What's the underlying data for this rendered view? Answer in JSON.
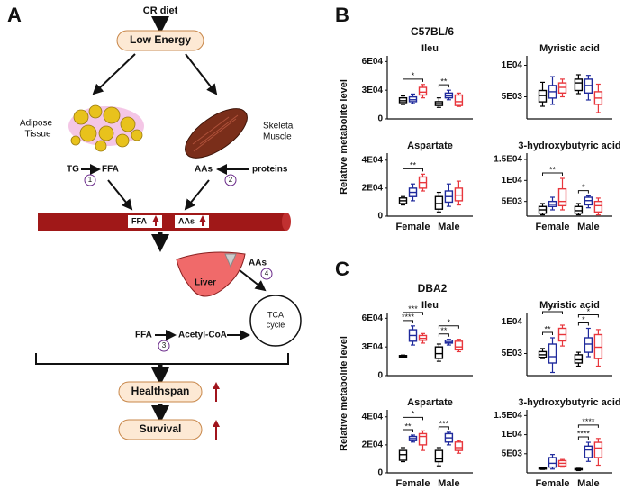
{
  "diagram": {
    "panel_label": "A",
    "diet": "CR diet",
    "low_energy": "Low Energy",
    "adipose": [
      "Adipose",
      "Tissue"
    ],
    "muscle": [
      "Skeletal",
      "Muscle"
    ],
    "tg": "TG",
    "ffa_adipose": "FFA",
    "step1": "1",
    "aas_muscle": "AAs",
    "proteins": "proteins",
    "step2": "2",
    "vessel_ffa": "FFA",
    "vessel_aas": "AAs",
    "liver": "Liver",
    "aas_liver": "AAs",
    "step4": "4",
    "ffa_liver": "FFA",
    "step3": "3",
    "acetyl": "Acetyl-CoA",
    "tca": [
      "TCA",
      "cycle"
    ],
    "healthspan": "Healthspan",
    "survival": "Survival"
  },
  "panels": [
    {
      "label": "B",
      "title": "C57BL/6",
      "y_label": "Relative metabolite level"
    },
    {
      "label": "C",
      "title": "DBA2",
      "y_label": "Relative metabolite level"
    }
  ],
  "chart_data": [
    {
      "type": "box",
      "title": "Ileu",
      "ylim": [
        0,
        66000
      ],
      "yticks": [
        0,
        {
          "value": 30000,
          "label": "3E04"
        },
        {
          "value": 60000,
          "label": "6E04"
        }
      ],
      "series": [
        {
          "color": "#000000",
          "boxes": [
            [
              15000,
              17000,
              19000,
              22000,
              24000
            ],
            [
              12000,
              14000,
              16000,
              18000,
              22000
            ]
          ]
        },
        {
          "color": "#1f2a9c",
          "boxes": [
            [
              16000,
              18000,
              20000,
              23000,
              26000
            ],
            [
              20000,
              22000,
              24000,
              27000,
              30000
            ]
          ]
        },
        {
          "color": "#e8363c",
          "boxes": [
            [
              22000,
              25000,
              28000,
              33000,
              36000
            ],
            [
              13000,
              14000,
              18000,
              25000,
              27000
            ]
          ]
        }
      ],
      "significance": [
        {
          "label": "*",
          "category": 0,
          "pair": [
            0,
            2
          ]
        },
        {
          "label": "**",
          "category": 1,
          "pair": [
            0,
            1
          ]
        }
      ]
    },
    {
      "type": "box",
      "title": "Myristic acid",
      "ylim": [
        1500,
        11500
      ],
      "yticks": [
        {
          "value": 5000,
          "label": "5E03"
        },
        {
          "value": 10000,
          "label": "1E04"
        }
      ],
      "series": [
        {
          "color": "#000000",
          "boxes": [
            [
              3500,
              4200,
              5200,
              6000,
              7300
            ],
            [
              5500,
              6000,
              7200,
              7800,
              8500
            ]
          ]
        },
        {
          "color": "#1f2a9c",
          "boxes": [
            [
              3800,
              4800,
              5800,
              6800,
              8200
            ],
            [
              4500,
              5600,
              6800,
              7800,
              8400
            ]
          ]
        },
        {
          "color": "#e8363c",
          "boxes": [
            [
              5000,
              5600,
              6500,
              7200,
              7800
            ],
            [
              2500,
              3800,
              4800,
              5800,
              7000
            ]
          ]
        }
      ],
      "significance": []
    },
    {
      "type": "box",
      "title": "Aspartate",
      "ylim": [
        0,
        45000
      ],
      "categories": [
        "Female",
        "Male"
      ],
      "yticks": [
        0,
        {
          "value": 20000,
          "label": "2E04"
        },
        {
          "value": 40000,
          "label": "4E04"
        }
      ],
      "series": [
        {
          "color": "#000000",
          "boxes": [
            [
              8000,
              9000,
              11000,
              13000,
              14000
            ],
            [
              3000,
              5000,
              9000,
              14000,
              17000
            ]
          ]
        },
        {
          "color": "#1f2a9c",
          "boxes": [
            [
              11000,
              14000,
              17000,
              20000,
              23000
            ],
            [
              7000,
              10000,
              14000,
              18000,
              23000
            ]
          ]
        },
        {
          "color": "#e8363c",
          "boxes": [
            [
              18000,
              20000,
              24000,
              28000,
              30000
            ],
            [
              8000,
              11000,
              15000,
              20000,
              25000
            ]
          ]
        }
      ],
      "significance": [
        {
          "label": "**",
          "category": 0,
          "pair": [
            0,
            2
          ]
        }
      ]
    },
    {
      "type": "box",
      "title": "3-hydroxybutyric acid",
      "ylim": [
        1500,
        16500
      ],
      "categories": [
        "Female",
        "Male"
      ],
      "yticks": [
        {
          "value": 5000,
          "label": "5E03"
        },
        {
          "value": 10000,
          "label": "1E04"
        },
        {
          "value": 15000,
          "label": "1.5E04"
        }
      ],
      "series": [
        {
          "color": "#000000",
          "boxes": [
            [
              1800,
              2200,
              3000,
              3800,
              4500
            ],
            [
              1800,
              2200,
              2800,
              3800,
              4500
            ]
          ]
        },
        {
          "color": "#1f2a9c",
          "boxes": [
            [
              3000,
              3800,
              4300,
              5000,
              6000
            ],
            [
              3500,
              4200,
              5200,
              6000,
              6300
            ]
          ]
        },
        {
          "color": "#e8363c",
          "boxes": [
            [
              3000,
              4000,
              5000,
              8000,
              10500
            ],
            [
              1800,
              2500,
              4000,
              5000,
              5800
            ]
          ]
        }
      ],
      "significance": [
        {
          "label": "**",
          "category": 0,
          "pair": [
            0,
            2
          ]
        },
        {
          "label": "*",
          "category": 1,
          "pair": [
            0,
            1
          ]
        }
      ]
    },
    {
      "type": "box",
      "title": "Ileu",
      "ylim": [
        0,
        66000
      ],
      "yticks": [
        0,
        {
          "value": 30000,
          "label": "3E04"
        },
        {
          "value": 60000,
          "label": "6E04"
        }
      ],
      "series": [
        {
          "color": "#000000",
          "boxes": [
            [
              18500,
              19000,
              20000,
              21000,
              21500
            ],
            [
              15000,
              18000,
              23000,
              30000,
              33000
            ]
          ]
        },
        {
          "color": "#1f2a9c",
          "boxes": [
            [
              32000,
              36000,
              42000,
              48000,
              52000
            ],
            [
              32000,
              34000,
              35000,
              37000,
              38000
            ]
          ]
        },
        {
          "color": "#e8363c",
          "boxes": [
            [
              34000,
              37000,
              39000,
              42000,
              44000
            ],
            [
              25000,
              27000,
              30000,
              36000,
              38000
            ]
          ]
        }
      ],
      "significance": [
        {
          "label": "****",
          "category": 0,
          "pair": [
            0,
            1
          ]
        },
        {
          "label": "***",
          "category": 0,
          "pair": [
            0,
            2
          ]
        },
        {
          "label": "**",
          "category": 1,
          "pair": [
            0,
            1
          ]
        },
        {
          "label": "*",
          "category": 1,
          "pair": [
            0,
            2
          ]
        }
      ]
    },
    {
      "type": "box",
      "title": "Myristic acid",
      "ylim": [
        1500,
        11500
      ],
      "yticks": [
        {
          "value": 5000,
          "label": "5E03"
        },
        {
          "value": 10000,
          "label": "1E04"
        }
      ],
      "series": [
        {
          "color": "#000000",
          "boxes": [
            [
              4200,
              4400,
              4800,
              5300,
              5800
            ],
            [
              3000,
              3500,
              4000,
              4800,
              5200
            ]
          ]
        },
        {
          "color": "#1f2a9c",
          "boxes": [
            [
              2000,
              3500,
              4500,
              6500,
              7500
            ],
            [
              4500,
              5200,
              6500,
              7500,
              9000
            ]
          ]
        },
        {
          "color": "#e8363c",
          "boxes": [
            [
              6200,
              7000,
              8000,
              9000,
              9500
            ],
            [
              3000,
              4200,
              6000,
              8000,
              8800
            ]
          ]
        }
      ],
      "significance": [
        {
          "label": "**",
          "category": 0,
          "pair": [
            0,
            1
          ]
        },
        {
          "label": "**",
          "category": 0,
          "pair": [
            0,
            2
          ]
        },
        {
          "label": "*",
          "category": 1,
          "pair": [
            0,
            1
          ]
        },
        {
          "label": "*",
          "category": 1,
          "pair": [
            0,
            2
          ]
        }
      ]
    },
    {
      "type": "box",
      "title": "Aspartate",
      "ylim": [
        0,
        45000
      ],
      "categories": [
        "Female",
        "Male"
      ],
      "yticks": [
        0,
        {
          "value": 20000,
          "label": "2E04"
        },
        {
          "value": 40000,
          "label": "4E04"
        }
      ],
      "series": [
        {
          "color": "#000000",
          "boxes": [
            [
              8000,
              9000,
              13000,
              16000,
              18000
            ],
            [
              5000,
              8000,
              10000,
              16000,
              18000
            ]
          ]
        },
        {
          "color": "#1f2a9c",
          "boxes": [
            [
              22000,
              23000,
              24500,
              26000,
              27000
            ],
            [
              20000,
              22000,
              25000,
              28000,
              29000
            ]
          ]
        },
        {
          "color": "#e8363c",
          "boxes": [
            [
              16000,
              20000,
              26000,
              28000,
              30000
            ],
            [
              14000,
              16000,
              18000,
              22000,
              23000
            ]
          ]
        }
      ],
      "significance": [
        {
          "label": "**",
          "category": 0,
          "pair": [
            0,
            1
          ]
        },
        {
          "label": "*",
          "category": 0,
          "pair": [
            0,
            2
          ]
        },
        {
          "label": "***",
          "category": 1,
          "pair": [
            0,
            1
          ]
        }
      ]
    },
    {
      "type": "box",
      "title": "3-hydroxybutyric acid",
      "ylim": [
        0,
        16500
      ],
      "categories": [
        "Female",
        "Male"
      ],
      "yticks": [
        {
          "value": 5000,
          "label": "5E03"
        },
        {
          "value": 10000,
          "label": "1E04"
        },
        {
          "value": 15000,
          "label": "1.5E04"
        }
      ],
      "series": [
        {
          "color": "#000000",
          "boxes": [
            [
              900,
              1000,
              1200,
              1400,
              1500
            ],
            [
              600,
              800,
              900,
              1100,
              1200
            ]
          ]
        },
        {
          "color": "#1f2a9c",
          "boxes": [
            [
              1000,
              1500,
              2500,
              4000,
              4800
            ],
            [
              3000,
              4000,
              6000,
              7000,
              8000
            ]
          ]
        },
        {
          "color": "#e8363c",
          "boxes": [
            [
              1500,
              1800,
              2500,
              3200,
              3500
            ],
            [
              2000,
              4000,
              6500,
              8000,
              9000
            ]
          ]
        }
      ],
      "significance": [
        {
          "label": "****",
          "category": 1,
          "pair": [
            0,
            1
          ]
        },
        {
          "label": "****",
          "category": 1,
          "pair": [
            0,
            2
          ]
        }
      ]
    }
  ]
}
